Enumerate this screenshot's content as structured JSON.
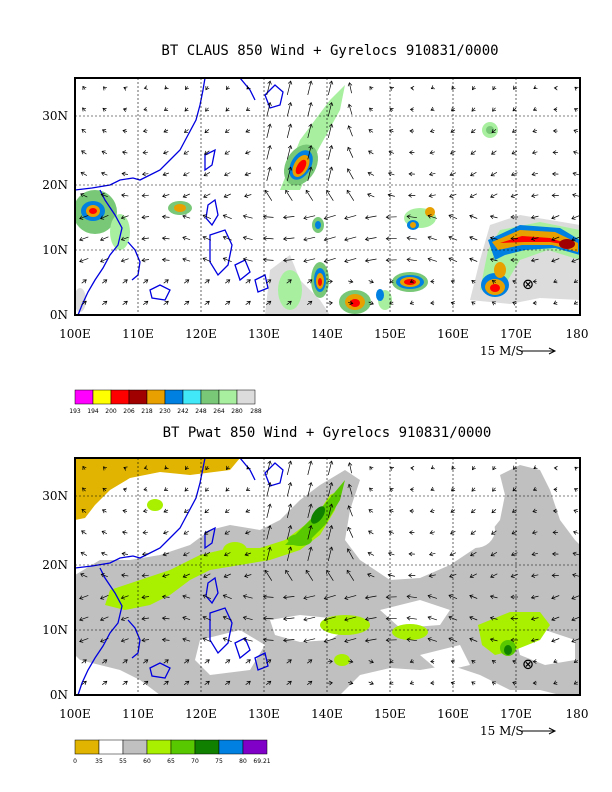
{
  "panels": [
    {
      "id": "claus",
      "title": "BT CLAUS 850 Wind + Gyrelocs 910831/0000",
      "lon_labels": [
        "100E",
        "110E",
        "120E",
        "130E",
        "140E",
        "150E",
        "160E",
        "170E",
        "180"
      ],
      "lat_labels": [
        "0N",
        "10N",
        "20N",
        "30N"
      ],
      "ref_vector_label": "15 M/S",
      "legend": {
        "colors": [
          "#ff00ff",
          "#ffff00",
          "#ff0000",
          "#a00000",
          "#e8a000",
          "#0080e0",
          "#40e8f8",
          "#78c878",
          "#a8f0a0",
          "#dcdcdc"
        ],
        "labels": [
          "193",
          "194",
          "200",
          "206",
          "218",
          "230",
          "242",
          "248",
          "264",
          "280",
          "288"
        ]
      },
      "storm_marker": "⊗"
    },
    {
      "id": "pwat",
      "title": "BT Pwat 850 Wind + Gyrelocs 910831/0000",
      "lon_labels": [
        "100E",
        "110E",
        "120E",
        "130E",
        "140E",
        "150E",
        "160E",
        "170E",
        "180"
      ],
      "lat_labels": [
        "0N",
        "10N",
        "20N",
        "30N"
      ],
      "ref_vector_label": "15 M/S",
      "legend": {
        "colors": [
          "#e0b400",
          "#ffffff",
          "#c0c0c0",
          "#a8f000",
          "#58c800",
          "#108000",
          "#0080e0",
          "#8000c8"
        ],
        "labels": [
          "0",
          "35",
          "55",
          "60",
          "65",
          "70",
          "75",
          "80",
          "69.21"
        ]
      },
      "storm_marker": "⊗"
    }
  ]
}
